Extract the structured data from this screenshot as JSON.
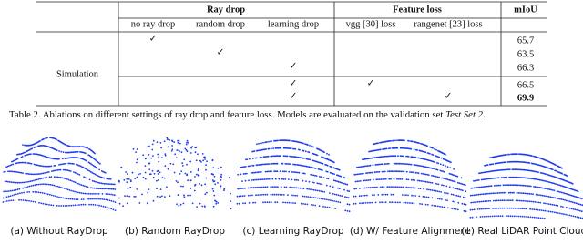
{
  "table": {
    "group_headers": [
      "Ray drop",
      "Feature loss",
      "mIoU"
    ],
    "sub_headers": [
      "no ray drop",
      "random drop",
      "learning drop",
      "vgg [30] loss",
      "rangenet [23] loss"
    ],
    "row_label": "Simulation",
    "rows": [
      {
        "no_ray_drop": "✓",
        "miou": "65.7"
      },
      {
        "random_drop": "✓",
        "miou": "63.5"
      },
      {
        "learning_drop": "✓",
        "miou": "66.3"
      },
      {
        "learning_drop": "✓",
        "vgg_loss": "✓",
        "miou": "66.5"
      },
      {
        "learning_drop": "✓",
        "rangenet_loss": "✓",
        "miou": "69.9",
        "best": true
      }
    ]
  },
  "caption": {
    "text": "Table 2. Ablations on different settings of ray drop and feature loss. Models are evaluated on the validation set ",
    "emph": "Test Set 2",
    "end": "."
  },
  "figure": {
    "subcaptions": [
      "(a) Without RayDrop",
      "(b) Random RayDrop",
      "(c) Learning RayDrop",
      "(d) W/ Feature Alignment",
      "(e) Real LiDAR Point Clouds"
    ]
  }
}
